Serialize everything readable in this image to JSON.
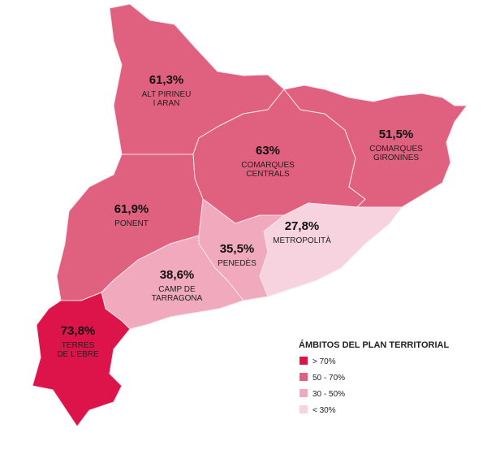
{
  "map": {
    "regions": [
      {
        "value_label": "61,3%",
        "name_lines": [
          "ALT PIRINEU",
          "I ARAN"
        ],
        "color": "#e0607f"
      },
      {
        "value_label": "63%",
        "name_lines": [
          "COMARQUES",
          "CENTRALS"
        ],
        "color": "#e0607f"
      },
      {
        "value_label": "51,5%",
        "name_lines": [
          "COMARQUES",
          "GIRONINES"
        ],
        "color": "#e0607f"
      },
      {
        "value_label": "61,9%",
        "name_lines": [
          "PONENT"
        ],
        "color": "#e0607f"
      },
      {
        "value_label": "27,8%",
        "name_lines": [
          "METROPOLITÀ"
        ],
        "color": "#f6d3de"
      },
      {
        "value_label": "35,5%",
        "name_lines": [
          "PENEDÈS"
        ],
        "color": "#f0a9bd"
      },
      {
        "value_label": "38,6%",
        "name_lines": [
          "CAMP DE",
          "TARRAGONA"
        ],
        "color": "#f0a9bd"
      },
      {
        "value_label": "73,8%",
        "name_lines": [
          "TERRES",
          "DE L'EBRE"
        ],
        "color": "#dc1449"
      }
    ],
    "legend": {
      "title": "ÁMBITOS DEL PLAN TERRITORIAL",
      "items": [
        {
          "label": "> 70%",
          "color": "#dc1449"
        },
        {
          "label": "50 - 70%",
          "color": "#e0607f"
        },
        {
          "label": "30 - 50%",
          "color": "#f0a9bd"
        },
        {
          "label": "< 30%",
          "color": "#f6d3de"
        }
      ]
    }
  }
}
